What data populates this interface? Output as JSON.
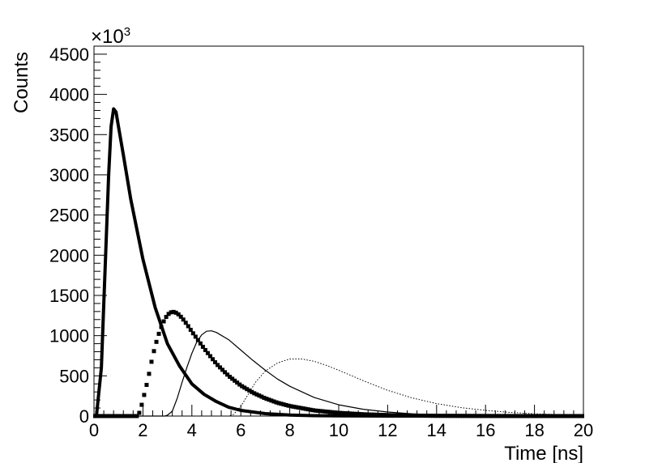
{
  "chart_data": {
    "type": "line",
    "xlabel": "Time [ns]",
    "ylabel": "Counts",
    "y_multiplier_label": "×10",
    "y_multiplier_exponent": "3",
    "xlim": [
      0,
      20
    ],
    "ylim": [
      0,
      4600
    ],
    "x_ticks": [
      0,
      2,
      4,
      6,
      8,
      10,
      12,
      14,
      16,
      18,
      20
    ],
    "y_ticks": [
      0,
      500,
      1000,
      1500,
      2000,
      2500,
      3000,
      3500,
      4000,
      4500
    ],
    "grid": false,
    "legend": "none",
    "series": [
      {
        "style": "thick-solid",
        "color": "#000000",
        "points": [
          [
            0.1,
            0
          ],
          [
            0.3,
            600
          ],
          [
            0.45,
            1800
          ],
          [
            0.6,
            3000
          ],
          [
            0.7,
            3600
          ],
          [
            0.8,
            3820
          ],
          [
            0.9,
            3780
          ],
          [
            1.0,
            3600
          ],
          [
            1.2,
            3250
          ],
          [
            1.5,
            2700
          ],
          [
            2.0,
            1950
          ],
          [
            2.5,
            1350
          ],
          [
            3.0,
            900
          ],
          [
            3.5,
            620
          ],
          [
            4.0,
            400
          ],
          [
            4.5,
            270
          ],
          [
            5.0,
            180
          ],
          [
            5.5,
            110
          ],
          [
            6.0,
            70
          ],
          [
            7.0,
            30
          ],
          [
            8.0,
            12
          ],
          [
            9.0,
            5
          ],
          [
            10.0,
            2
          ],
          [
            12.0,
            0
          ],
          [
            20.0,
            0
          ]
        ]
      },
      {
        "style": "square-markers",
        "color": "#000000",
        "points": [
          [
            0,
            0
          ],
          [
            1.8,
            0
          ],
          [
            1.9,
            80
          ],
          [
            2.0,
            200
          ],
          [
            2.2,
            450
          ],
          [
            2.4,
            750
          ],
          [
            2.6,
            980
          ],
          [
            2.8,
            1150
          ],
          [
            3.0,
            1260
          ],
          [
            3.2,
            1300
          ],
          [
            3.4,
            1280
          ],
          [
            3.6,
            1220
          ],
          [
            3.8,
            1140
          ],
          [
            4.0,
            1050
          ],
          [
            4.5,
            840
          ],
          [
            5.0,
            650
          ],
          [
            5.5,
            500
          ],
          [
            6.0,
            380
          ],
          [
            6.5,
            290
          ],
          [
            7.0,
            220
          ],
          [
            7.5,
            165
          ],
          [
            8.0,
            125
          ],
          [
            9.0,
            70
          ],
          [
            10.0,
            40
          ],
          [
            11.0,
            22
          ],
          [
            12.0,
            12
          ],
          [
            13.0,
            6
          ],
          [
            14.0,
            3
          ],
          [
            16.0,
            1
          ],
          [
            18.0,
            0
          ],
          [
            20.0,
            0
          ]
        ]
      },
      {
        "style": "thin-solid",
        "color": "#000000",
        "points": [
          [
            0,
            0
          ],
          [
            2.9,
            0
          ],
          [
            3.0,
            10
          ],
          [
            3.2,
            60
          ],
          [
            3.4,
            220
          ],
          [
            3.6,
            420
          ],
          [
            3.8,
            610
          ],
          [
            4.0,
            780
          ],
          [
            4.2,
            920
          ],
          [
            4.4,
            1010
          ],
          [
            4.6,
            1055
          ],
          [
            4.8,
            1060
          ],
          [
            5.0,
            1040
          ],
          [
            5.5,
            950
          ],
          [
            6.0,
            820
          ],
          [
            6.5,
            690
          ],
          [
            7.0,
            570
          ],
          [
            7.5,
            460
          ],
          [
            8.0,
            370
          ],
          [
            9.0,
            230
          ],
          [
            10.0,
            140
          ],
          [
            11.0,
            85
          ],
          [
            12.0,
            50
          ],
          [
            13.0,
            28
          ],
          [
            14.0,
            15
          ],
          [
            15.0,
            8
          ],
          [
            16.0,
            4
          ],
          [
            18.0,
            1
          ],
          [
            20.0,
            0
          ]
        ]
      },
      {
        "style": "dotted",
        "color": "#000000",
        "points": [
          [
            0,
            0
          ],
          [
            5.5,
            0
          ],
          [
            5.7,
            20
          ],
          [
            6.0,
            120
          ],
          [
            6.3,
            270
          ],
          [
            6.6,
            420
          ],
          [
            7.0,
            560
          ],
          [
            7.5,
            660
          ],
          [
            8.0,
            710
          ],
          [
            8.5,
            710
          ],
          [
            9.0,
            680
          ],
          [
            9.5,
            630
          ],
          [
            10.0,
            570
          ],
          [
            10.5,
            505
          ],
          [
            11.0,
            440
          ],
          [
            12.0,
            320
          ],
          [
            13.0,
            225
          ],
          [
            14.0,
            155
          ],
          [
            15.0,
            105
          ],
          [
            16.0,
            70
          ],
          [
            17.0,
            45
          ],
          [
            18.0,
            28
          ],
          [
            19.0,
            18
          ],
          [
            20.0,
            10
          ]
        ]
      }
    ]
  }
}
